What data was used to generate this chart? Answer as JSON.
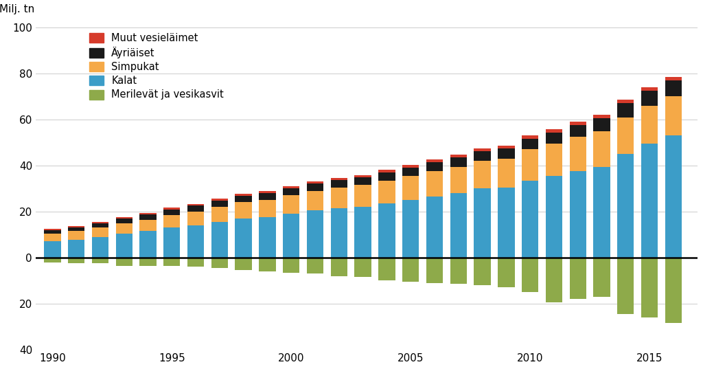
{
  "years": [
    1990,
    1991,
    1992,
    1993,
    1994,
    1995,
    1996,
    1997,
    1998,
    1999,
    2000,
    2001,
    2002,
    2003,
    2004,
    2005,
    2006,
    2007,
    2008,
    2009,
    2010,
    2011,
    2012,
    2013,
    2014,
    2015,
    2016
  ],
  "kalat": [
    7.0,
    7.8,
    9.0,
    10.5,
    11.5,
    13.0,
    14.0,
    15.5,
    17.0,
    17.5,
    19.0,
    20.5,
    21.5,
    22.0,
    23.5,
    25.0,
    26.5,
    28.0,
    30.0,
    30.5,
    33.5,
    35.5,
    37.5,
    39.5,
    45.0,
    49.5,
    53.0
  ],
  "simpukat": [
    3.5,
    3.8,
    4.0,
    4.5,
    5.0,
    5.5,
    6.0,
    6.5,
    7.0,
    7.5,
    8.0,
    8.5,
    9.0,
    9.5,
    10.0,
    10.5,
    11.0,
    11.5,
    12.0,
    12.5,
    13.5,
    14.0,
    15.0,
    15.5,
    16.0,
    16.5,
    17.0
  ],
  "ayriaiset": [
    1.5,
    1.6,
    1.8,
    2.0,
    2.2,
    2.4,
    2.6,
    2.8,
    2.8,
    2.9,
    3.0,
    3.1,
    3.2,
    3.3,
    3.5,
    3.7,
    3.8,
    4.0,
    4.2,
    4.3,
    4.5,
    4.8,
    5.0,
    5.5,
    6.0,
    6.5,
    7.0
  ],
  "muut": [
    0.5,
    0.5,
    0.6,
    0.6,
    0.7,
    0.7,
    0.7,
    0.8,
    0.8,
    0.9,
    0.9,
    1.0,
    1.0,
    1.0,
    1.1,
    1.2,
    1.2,
    1.2,
    1.3,
    1.3,
    1.5,
    1.5,
    1.5,
    1.5,
    1.5,
    1.5,
    1.5
  ],
  "merilevat": [
    -2.0,
    -2.5,
    -2.5,
    -3.5,
    -3.5,
    -3.5,
    -4.0,
    -4.5,
    -5.5,
    -6.0,
    -6.5,
    -7.0,
    -8.0,
    -8.5,
    -10.0,
    -10.5,
    -11.0,
    -11.5,
    -12.0,
    -13.0,
    -15.0,
    -19.5,
    -18.0,
    -17.0,
    -24.5,
    -26.0,
    -28.5
  ],
  "color_kalat": "#3C9DC8",
  "color_simpukat": "#F5A947",
  "color_ayriaiset": "#1A1A1A",
  "color_muut": "#D63B2B",
  "color_merilevat": "#8EAA4A",
  "ylabel": "Milj. tn",
  "ylim_top": 100,
  "ylim_bottom": -40,
  "yticks_pos": [
    0,
    20,
    40,
    60,
    80,
    100
  ],
  "yticks_neg": [
    -20,
    -40
  ],
  "xtick_years": [
    1990,
    1995,
    2000,
    2005,
    2010,
    2015
  ],
  "legend_entries": [
    {
      "label": "Muut vesieläimet",
      "color": "#D63B2B"
    },
    {
      "label": "Äyriäiset",
      "color": "#1A1A1A"
    },
    {
      "label": "Simpukat",
      "color": "#F5A947"
    },
    {
      "label": "Kalat",
      "color": "#3C9DC8"
    },
    {
      "label": "Merilevät ja vesikasvit",
      "color": "#8EAA4A"
    }
  ]
}
